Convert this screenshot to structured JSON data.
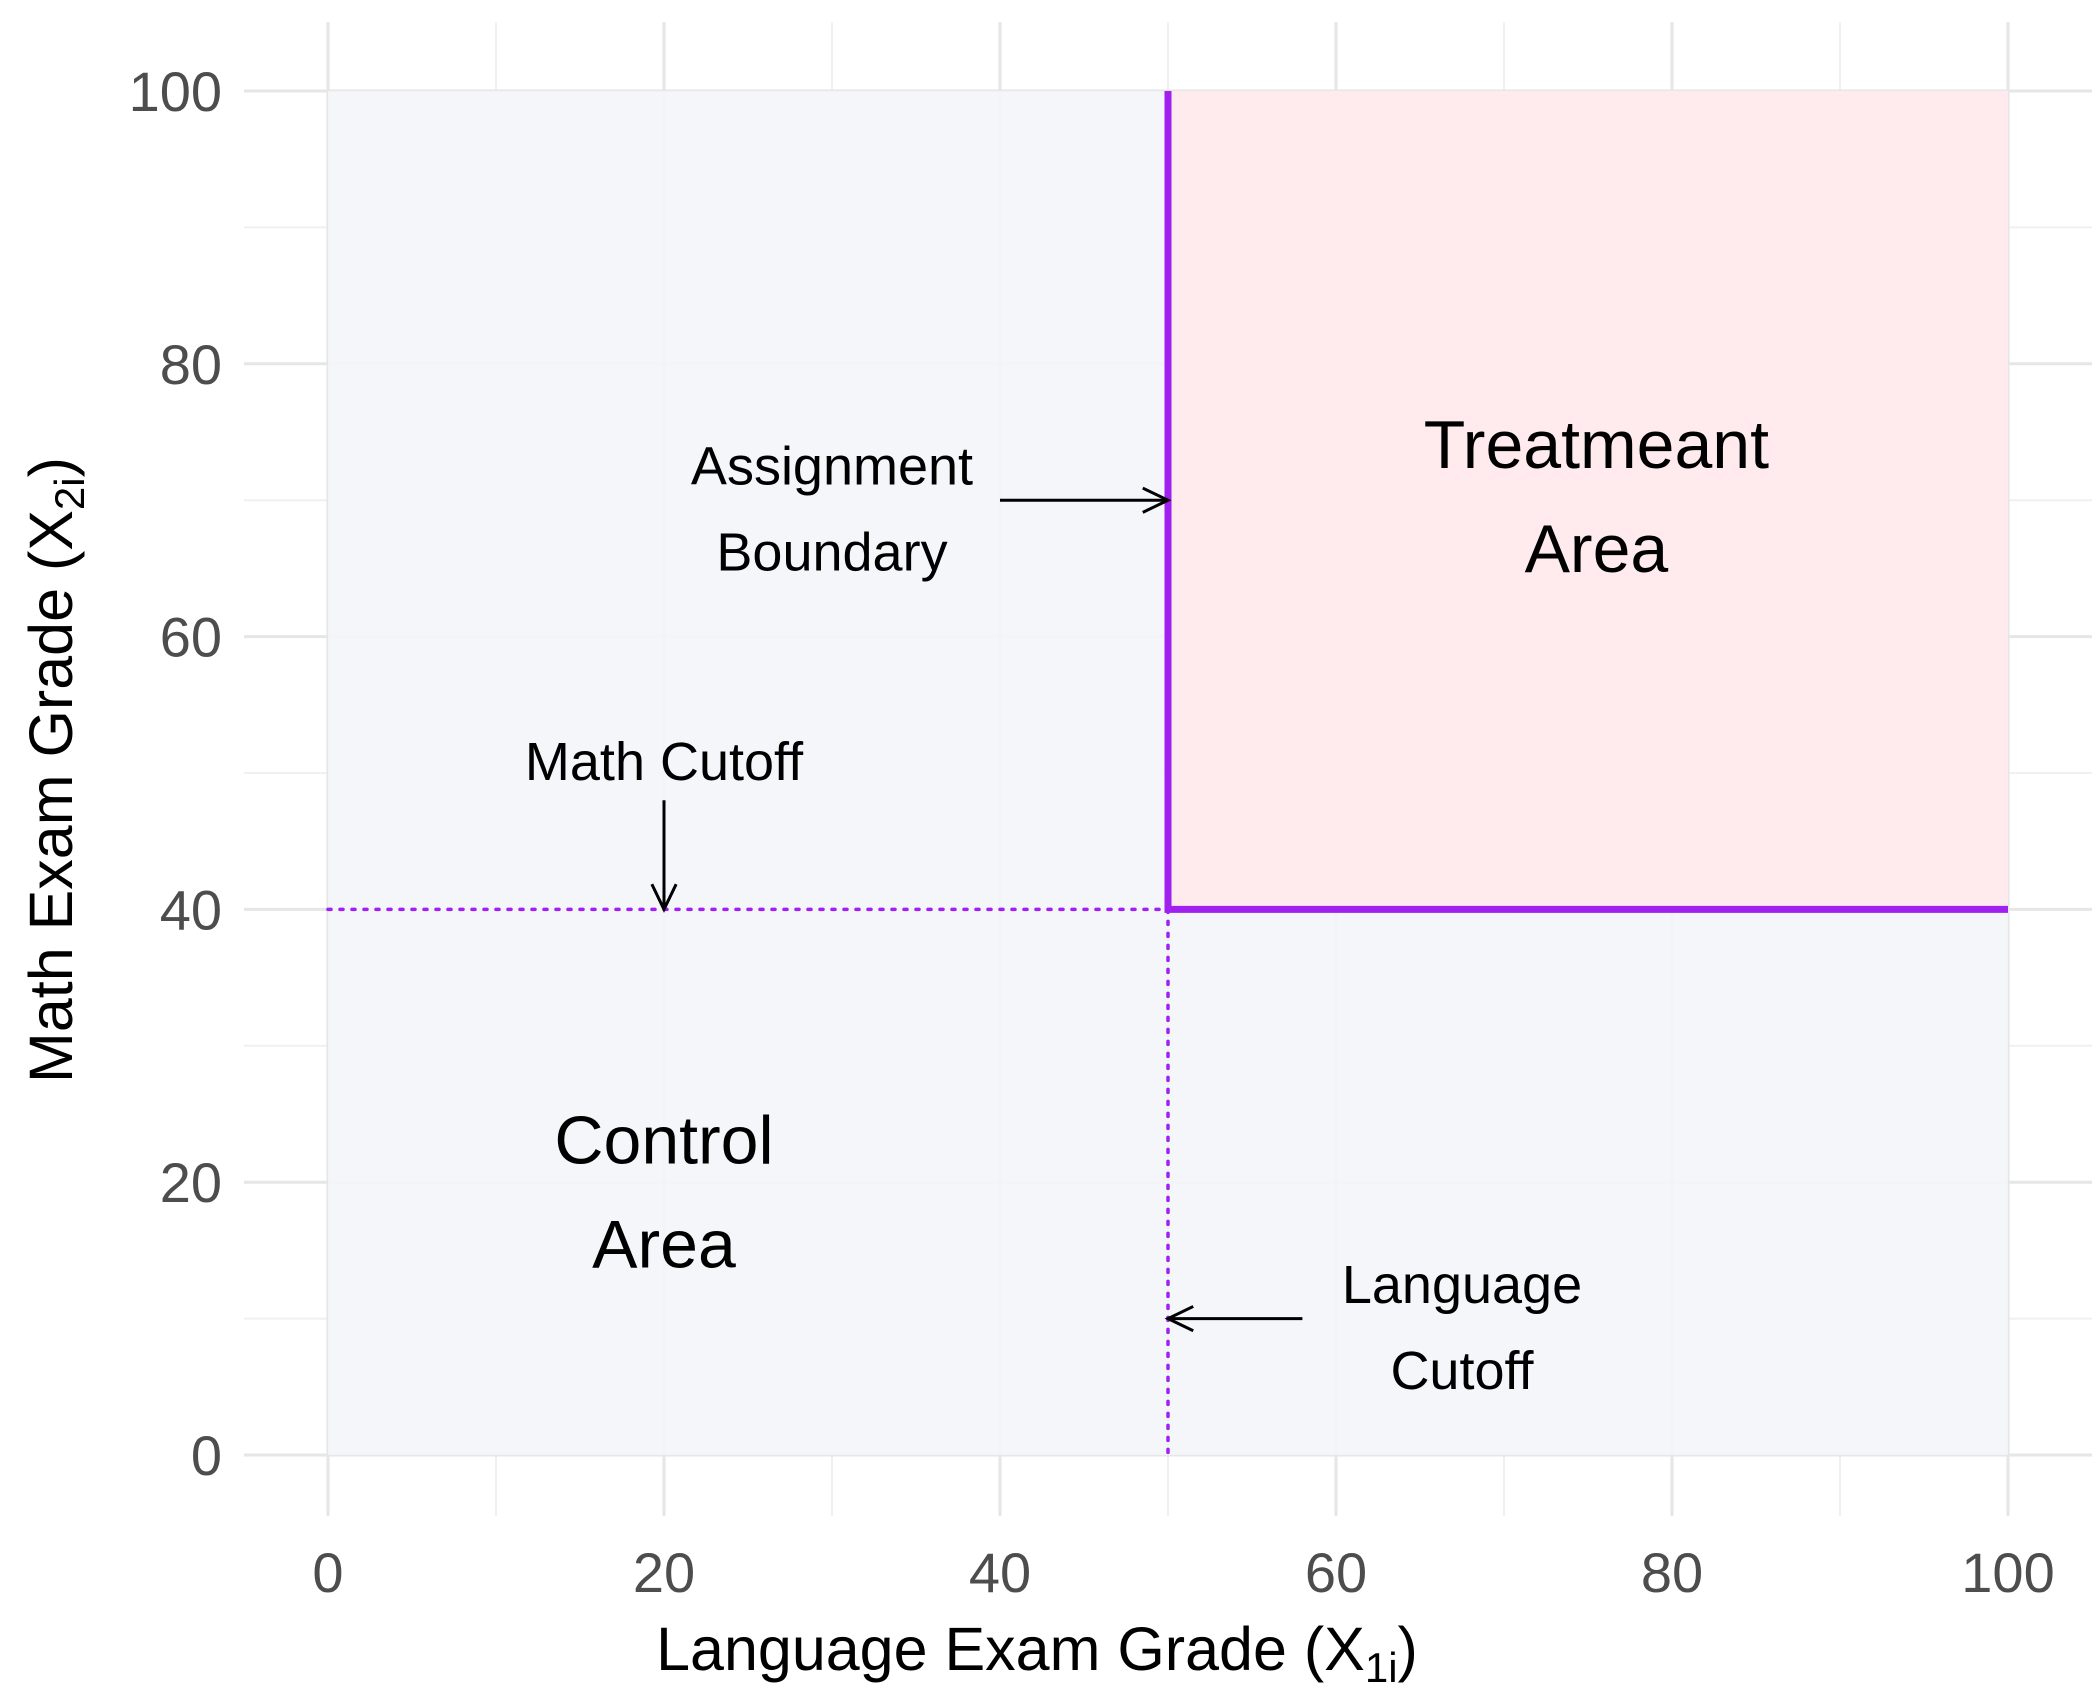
{
  "chart_data": {
    "type": "area",
    "xlabel": {
      "main": "Language Exam Grade (X",
      "sub": "1i",
      "close": ")"
    },
    "ylabel": {
      "main": "Math Exam Grade (X",
      "sub": "2i",
      "close": ")"
    },
    "xlim": [
      0,
      100
    ],
    "ylim": [
      0,
      100
    ],
    "x_ticks": [
      "0",
      "20",
      "40",
      "60",
      "80",
      "100"
    ],
    "y_ticks": [
      "0",
      "20",
      "40",
      "60",
      "80",
      "100"
    ],
    "grid": true,
    "regions": [
      {
        "label_lines": [
          "Control",
          "Area"
        ],
        "x_range": [
          0,
          100
        ],
        "y_range": [
          0,
          100
        ]
      },
      {
        "label_lines": [
          "Treatmeant",
          "Area"
        ],
        "x_range": [
          50,
          100
        ],
        "y_range": [
          40,
          100
        ]
      }
    ],
    "cutoffs": {
      "language": {
        "x": 50,
        "label_lines": [
          "Language",
          "Cutoff"
        ]
      },
      "math": {
        "y": 40,
        "label_lines": [
          "Math Cutoff"
        ]
      }
    },
    "boundary": {
      "points": [
        [
          50,
          100
        ],
        [
          50,
          40
        ],
        [
          100,
          40
        ]
      ],
      "label_lines": [
        "Assignment",
        "Boundary"
      ]
    },
    "annotations": [
      {
        "target": "assignment-boundary",
        "text_at": [
          30,
          70
        ],
        "arrow_from": [
          40,
          70
        ],
        "arrow_to": [
          50,
          70
        ]
      },
      {
        "target": "math-cutoff",
        "text_at": [
          20,
          51.5
        ],
        "arrow_from": [
          20,
          48
        ],
        "arrow_to": [
          20,
          40
        ]
      },
      {
        "target": "language-cutoff",
        "text_at": [
          67.5,
          10
        ],
        "arrow_from": [
          58,
          10
        ],
        "arrow_to": [
          50,
          10
        ]
      }
    ],
    "colors": {
      "control_fill": "#f4f5fa",
      "treatment_fill": "#ffe9eb",
      "boundary": "#a020f0",
      "grid_major": "#e6e6e6",
      "grid_minor": "#f0f0f0"
    }
  }
}
